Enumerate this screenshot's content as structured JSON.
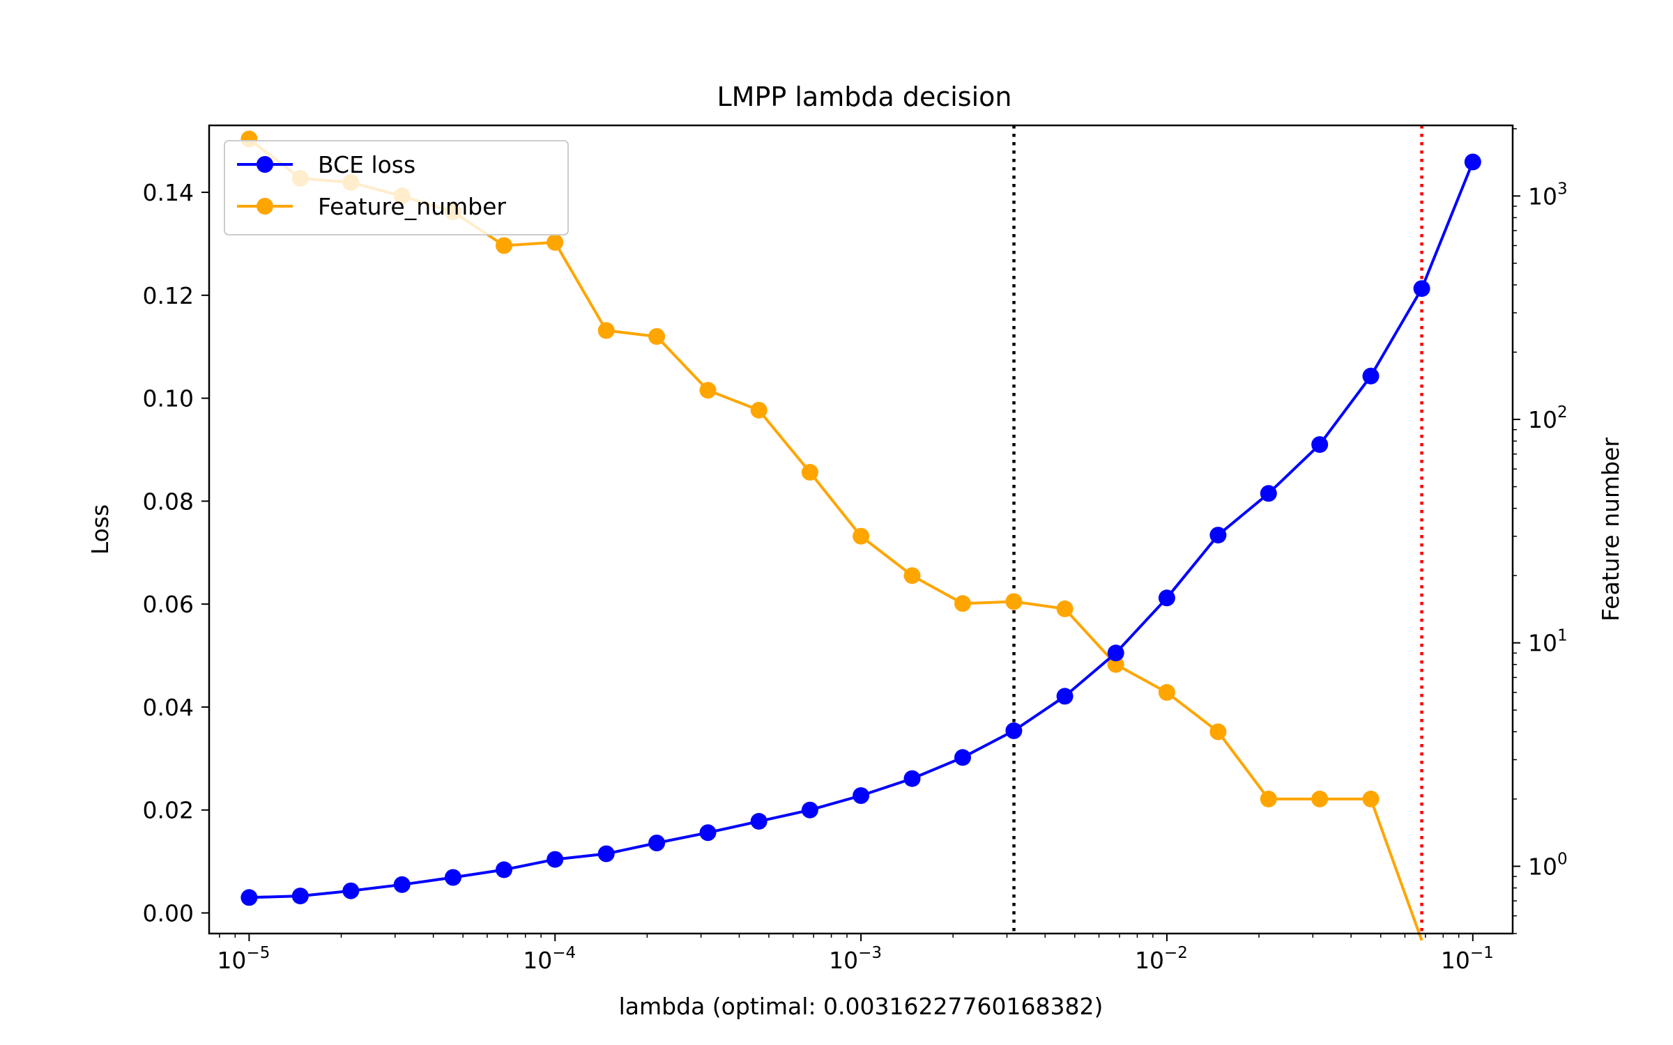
{
  "chart_data": {
    "type": "line",
    "title": "LMPP lambda decision",
    "xlabel": "lambda (optimal: 0.0031622776016838​2)",
    "ylabel": "Loss",
    "y2label": "Feature number",
    "xscale": "log",
    "y2scale": "log",
    "xlim": [
      7.4e-06,
      0.135
    ],
    "ylim": [
      -0.004,
      0.153
    ],
    "y2lim": [
      0.5,
      2070
    ],
    "x_ticks": [
      {
        "base": "10",
        "exp": "−5",
        "value": 1e-05
      },
      {
        "base": "10",
        "exp": "−4",
        "value": 0.0001
      },
      {
        "base": "10",
        "exp": "−3",
        "value": 0.001
      },
      {
        "base": "10",
        "exp": "−2",
        "value": 0.01
      },
      {
        "base": "10",
        "exp": "−1",
        "value": 0.1
      }
    ],
    "y_ticks": [
      {
        "label": "0.00",
        "value": 0.0
      },
      {
        "label": "0.02",
        "value": 0.02
      },
      {
        "label": "0.04",
        "value": 0.04
      },
      {
        "label": "0.06",
        "value": 0.06
      },
      {
        "label": "0.08",
        "value": 0.08
      },
      {
        "label": "0.10",
        "value": 0.1
      },
      {
        "label": "0.12",
        "value": 0.12
      },
      {
        "label": "0.14",
        "value": 0.14
      }
    ],
    "y2_ticks": [
      {
        "base": "10",
        "exp": "0",
        "value": 1
      },
      {
        "base": "10",
        "exp": "1",
        "value": 10
      },
      {
        "base": "10",
        "exp": "2",
        "value": 100
      },
      {
        "base": "10",
        "exp": "3",
        "value": 1000
      }
    ],
    "x": [
      1e-05,
      1.47e-05,
      2.15e-05,
      3.16e-05,
      4.64e-05,
      6.81e-05,
      0.0001,
      0.000147,
      0.000215,
      0.000316,
      0.000464,
      0.000681,
      0.001,
      0.00147,
      0.00215,
      0.00316,
      0.00464,
      0.00681,
      0.01,
      0.0147,
      0.0215,
      0.0316,
      0.0464,
      0.0681,
      0.1
    ],
    "series": [
      {
        "name": "BCE loss",
        "axis": "left",
        "color": "#0000ff",
        "values": [
          0.003,
          0.0033,
          0.0043,
          0.0055,
          0.0069,
          0.0084,
          0.0104,
          0.0115,
          0.0136,
          0.0156,
          0.0178,
          0.02,
          0.0228,
          0.0261,
          0.0302,
          0.0354,
          0.0421,
          0.0505,
          0.0612,
          0.0734,
          0.0815,
          0.091,
          0.1043,
          0.1213,
          0.1459
        ]
      },
      {
        "name": "Feature_number",
        "axis": "right",
        "color": "#ffa500",
        "values": [
          1800,
          1200,
          1150,
          1000,
          850,
          600,
          620,
          250,
          235,
          135,
          110,
          58,
          30,
          20,
          15,
          15.3,
          14.2,
          8,
          6,
          4,
          2,
          2,
          2,
          0,
          null
        ]
      }
    ],
    "vlines": [
      {
        "x": 0.00316227766016838,
        "color": "#000000",
        "style": "dotted"
      },
      {
        "x": 0.0681,
        "color": "#ff0000",
        "style": "dotted"
      }
    ],
    "legend_placement": "upper-left",
    "grid": false
  }
}
